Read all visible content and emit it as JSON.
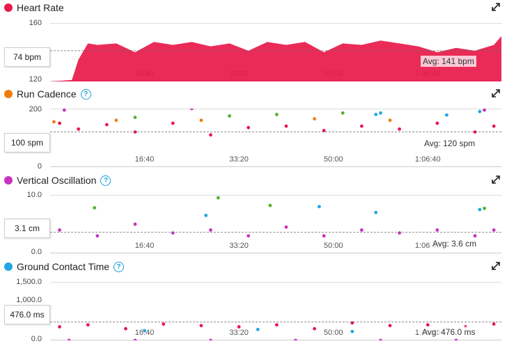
{
  "colors": {
    "hr": "#e8194a",
    "cadence": "#e8194a",
    "oscillation": "#c832c0",
    "gct": "#e8194a",
    "orange": "#f07d0a",
    "green": "#54b030",
    "blue": "#21a6e4",
    "purple": "#c832c0"
  },
  "x_ticks": [
    "16:40",
    "33:20",
    "50:00",
    "1:06:40"
  ],
  "x_range": [
    0,
    4780
  ],
  "panels": {
    "hr": {
      "title": "Heart Rate",
      "dot": "#e8194a",
      "y_ticks": [
        "160",
        "120"
      ],
      "current": "74 bpm",
      "avg": "Avg: 141 bpm",
      "help": false
    },
    "cadence": {
      "title": "Run Cadence",
      "dot": "#f07d0a",
      "y_ticks": [
        "200",
        "0"
      ],
      "current": "100 spm",
      "avg": "Avg: 120 spm",
      "help": true
    },
    "oscillation": {
      "title": "Vertical Oscillation",
      "dot": "#c832c0",
      "y_ticks": [
        "10.0",
        "0.0"
      ],
      "current": "3.1 cm",
      "avg": "Avg: 3.6 cm",
      "help": true
    },
    "gct": {
      "title": "Ground Contact Time",
      "dot": "#21a6e4",
      "y_ticks": [
        "1,500.0",
        "1,000.0",
        "0.0"
      ],
      "current": "476.0 ms",
      "avg": "Avg: 476.0 ms",
      "help": true
    }
  },
  "chart_data": [
    {
      "type": "area",
      "title": "Heart Rate",
      "ylim": [
        120,
        160
      ],
      "avg": 141,
      "x": [
        0,
        230,
        300,
        400,
        500,
        700,
        900,
        1100,
        1300,
        1500,
        1700,
        1900,
        2100,
        2300,
        2500,
        2700,
        2900,
        3100,
        3300,
        3500,
        3700,
        3900,
        4100,
        4300,
        4500,
        4700,
        4780
      ],
      "y": [
        120,
        121,
        135,
        146,
        145,
        146,
        140,
        147,
        145,
        147,
        144,
        146,
        141,
        147,
        145,
        147,
        140,
        146,
        145,
        148,
        146,
        144,
        140,
        143,
        141,
        145,
        151
      ]
    },
    {
      "type": "scatter",
      "title": "Run Cadence",
      "ylim": [
        0,
        200
      ],
      "avg": 120,
      "series": [
        {
          "name": "",
          "color": "#e8194a",
          "points": [
            [
              100,
              150
            ],
            [
              300,
              130
            ],
            [
              600,
              145
            ],
            [
              900,
              120
            ],
            [
              1300,
              150
            ],
            [
              1700,
              110
            ],
            [
              2100,
              135
            ],
            [
              2500,
              140
            ],
            [
              2900,
              125
            ],
            [
              3300,
              140
            ],
            [
              3700,
              130
            ],
            [
              4100,
              150
            ],
            [
              4500,
              120
            ],
            [
              4700,
              140
            ]
          ]
        },
        {
          "name": "",
          "color": "#f07d0a",
          "points": [
            [
              40,
              155
            ],
            [
              700,
              160
            ],
            [
              1600,
              160
            ],
            [
              2800,
              165
            ],
            [
              3600,
              160
            ]
          ]
        },
        {
          "name": "",
          "color": "#54b030",
          "points": [
            [
              900,
              170
            ],
            [
              1900,
              175
            ],
            [
              2400,
              180
            ],
            [
              3100,
              185
            ]
          ]
        },
        {
          "name": "",
          "color": "#21a6e4",
          "points": [
            [
              3450,
              180
            ],
            [
              3500,
              185
            ],
            [
              4200,
              178
            ],
            [
              4550,
              190
            ]
          ]
        },
        {
          "name": "",
          "color": "#c832c0",
          "points": [
            [
              150,
              195
            ],
            [
              1500,
              200
            ],
            [
              4600,
              195
            ]
          ]
        }
      ]
    },
    {
      "type": "scatter",
      "title": "Vertical Oscillation",
      "ylim": [
        0,
        10
      ],
      "avg": 3.6,
      "series": [
        {
          "name": "",
          "color": "#c832c0",
          "points": [
            [
              100,
              4
            ],
            [
              500,
              3
            ],
            [
              900,
              5
            ],
            [
              1300,
              3.5
            ],
            [
              1700,
              4
            ],
            [
              2100,
              3
            ],
            [
              2500,
              4.5
            ],
            [
              2900,
              3
            ],
            [
              3300,
              4
            ],
            [
              3700,
              3.5
            ],
            [
              4100,
              4
            ],
            [
              4500,
              3
            ],
            [
              4700,
              4
            ]
          ]
        },
        {
          "name": "",
          "color": "#21a6e4",
          "points": [
            [
              1650,
              6.5
            ],
            [
              2850,
              8
            ],
            [
              3450,
              7
            ],
            [
              4550,
              7.5
            ]
          ]
        },
        {
          "name": "",
          "color": "#54b030",
          "points": [
            [
              470,
              7.8
            ],
            [
              1780,
              9.5
            ],
            [
              2330,
              8.2
            ],
            [
              4600,
              7.7
            ]
          ]
        }
      ]
    },
    {
      "type": "scatter",
      "title": "Ground Contact Time",
      "ylim": [
        0,
        1500
      ],
      "avg": 476,
      "series": [
        {
          "name": "",
          "color": "#e8194a",
          "points": [
            [
              100,
              350
            ],
            [
              400,
              400
            ],
            [
              800,
              300
            ],
            [
              1200,
              420
            ],
            [
              1600,
              380
            ],
            [
              2000,
              350
            ],
            [
              2400,
              400
            ],
            [
              2800,
              300
            ],
            [
              3200,
              450
            ],
            [
              3600,
              380
            ],
            [
              4000,
              400
            ],
            [
              4400,
              350
            ],
            [
              4700,
              420
            ]
          ]
        },
        {
          "name": "",
          "color": "#c832c0",
          "points": [
            [
              200,
              0
            ],
            [
              900,
              0
            ],
            [
              1700,
              0
            ],
            [
              2600,
              0
            ],
            [
              3500,
              0
            ],
            [
              4300,
              0
            ]
          ]
        },
        {
          "name": "",
          "color": "#21a6e4",
          "points": [
            [
              1000,
              250
            ],
            [
              2200,
              280
            ],
            [
              3200,
              230
            ]
          ]
        }
      ]
    }
  ]
}
